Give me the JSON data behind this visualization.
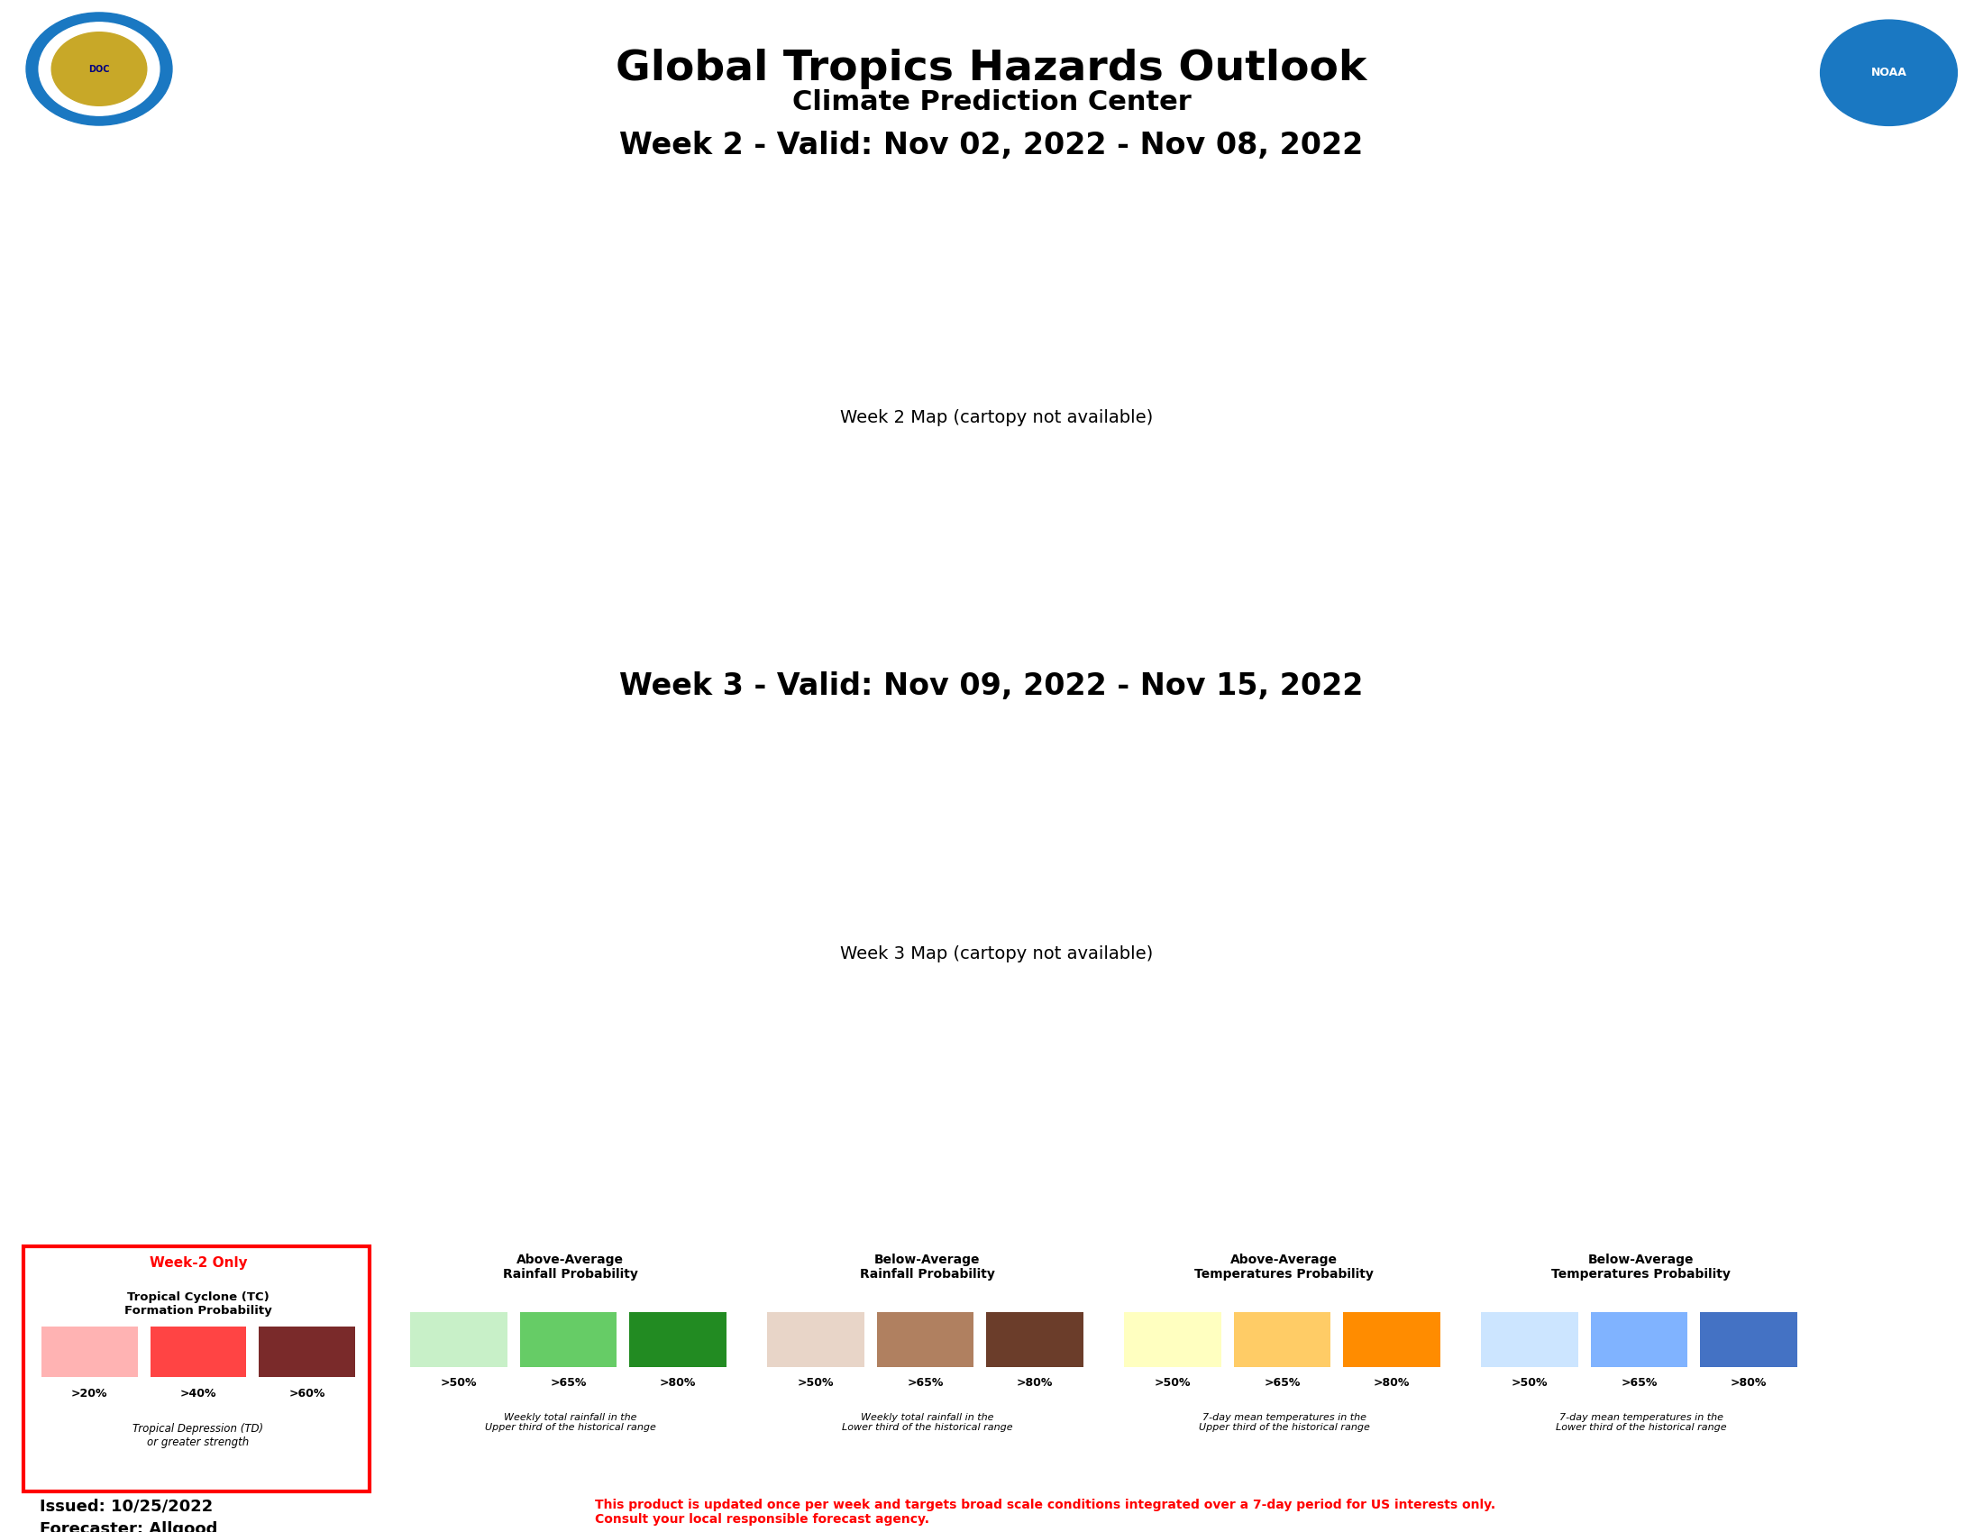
{
  "title": "Global Tropics Hazards Outlook",
  "subtitle": "Climate Prediction Center",
  "week2_title": "Week 2 - Valid: Nov 02, 2022 - Nov 08, 2022",
  "week3_title": "Week 3 - Valid: Nov 09, 2022 - Nov 15, 2022",
  "issued": "Issued: 10/25/2022",
  "forecaster": "Forecaster: Allgood",
  "disclaimer": "This product is updated once per week and targets broad scale conditions integrated over a 7-day period for US interests only.\nConsult your local responsible forecast agency.",
  "background_color": "#ffffff",
  "legend": {
    "tc_title": "Week-2 Only",
    "tc_subtitle": "Tropical Cyclone (TC)\nFormation Probability",
    "tc_colors": [
      "#ffb3b3",
      "#ff4444",
      "#7a2a2a"
    ],
    "tc_labels": [
      ">20%",
      ">40%",
      ">60%"
    ],
    "tc_note": "Tropical Depression (TD)\nor greater strength",
    "above_rain_title": "Above-Average\nRainfall Probability",
    "above_rain_colors": [
      "#c8f0c8",
      "#66cc66",
      "#228B22"
    ],
    "above_rain_labels": [
      ">50%",
      ">65%",
      ">80%"
    ],
    "above_rain_note": "Weekly total rainfall in the\nUpper third of the historical range",
    "below_rain_title": "Below-Average\nRainfall Probability",
    "below_rain_colors": [
      "#e8d5c8",
      "#b08060",
      "#6b3d2a"
    ],
    "below_rain_labels": [
      ">50%",
      ">65%",
      ">80%"
    ],
    "below_rain_note": "Weekly total rainfall in the\nLower third of the historical range",
    "above_temp_title": "Above-Average\nTemperatures Probability",
    "above_temp_colors": [
      "#ffffc0",
      "#ffcc66",
      "#ff8c00"
    ],
    "above_temp_labels": [
      ">50%",
      ">65%",
      ">80%"
    ],
    "above_temp_note": "7-day mean temperatures in the\nUpper third of the historical range",
    "below_temp_title": "Below-Average\nTemperatures Probability",
    "below_temp_colors": [
      "#cce5ff",
      "#80b3ff",
      "#4472c4"
    ],
    "below_temp_labels": [
      ">50%",
      ">65%",
      ">80%"
    ],
    "below_temp_note": "7-day mean temperatures in the\nLower third of the historical range"
  }
}
